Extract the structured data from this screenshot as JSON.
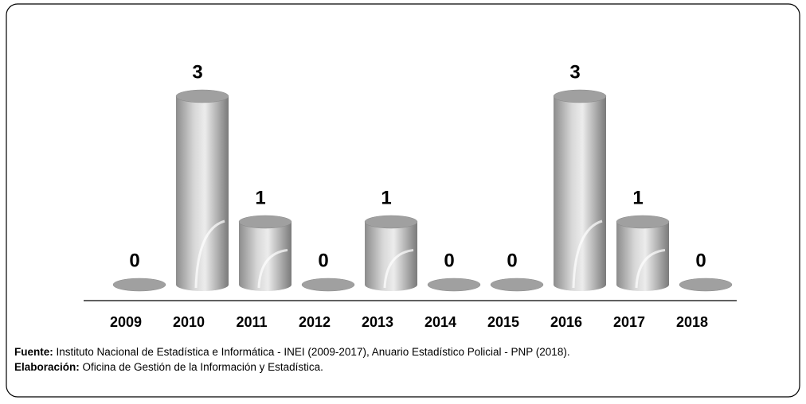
{
  "chart_data": {
    "type": "cylinder",
    "categories": [
      "2009",
      "2010",
      "2011",
      "2012",
      "2013",
      "2014",
      "2015",
      "2016",
      "2017",
      "2018"
    ],
    "values": [
      0,
      3,
      1,
      0,
      1,
      0,
      0,
      3,
      1,
      0
    ],
    "color": "#a0a0a0"
  },
  "footnote": {
    "source_label": "Fuente:",
    "source": " Instituto Nacional de Estadística e Informática - INEI (2009-2017), Anuario Estadístico Policial - PNP (2018).",
    "credit_label": "Elaboración:",
    "credit": " Oficina de Gestión de la Información y Estadística."
  }
}
